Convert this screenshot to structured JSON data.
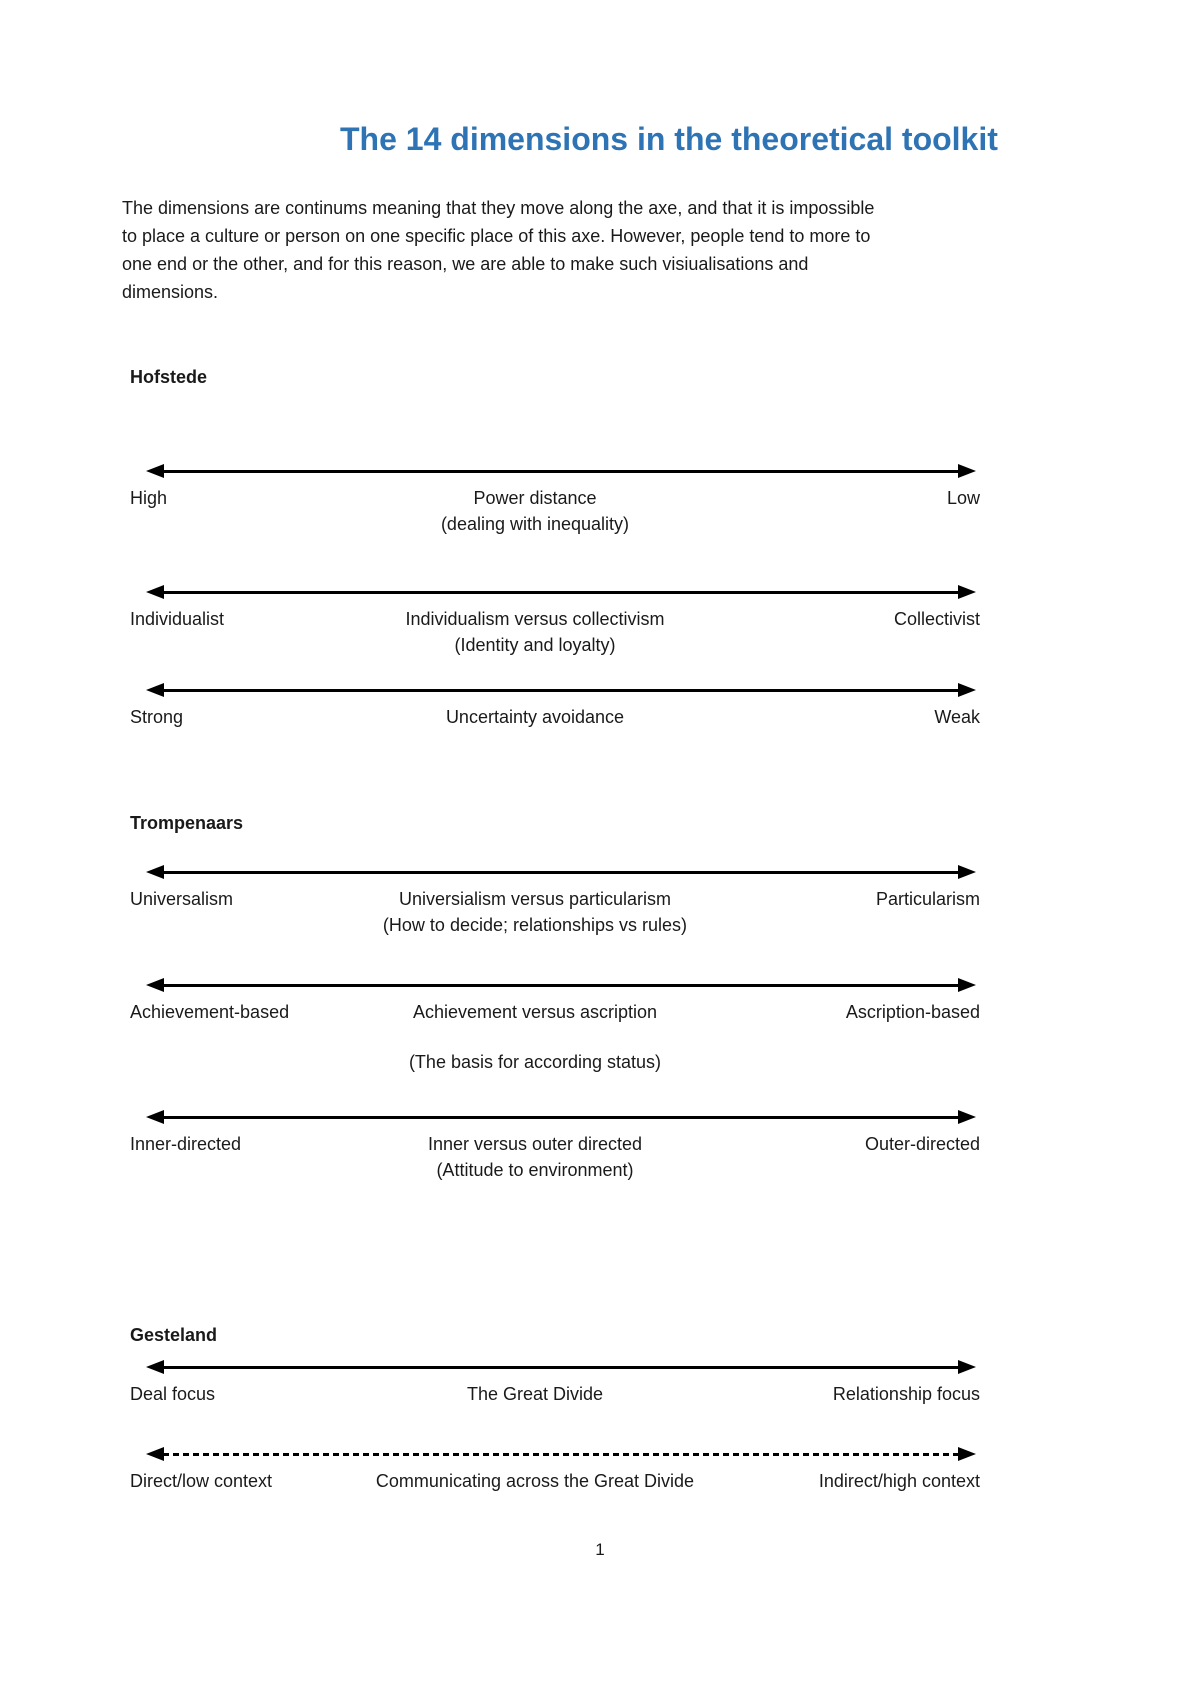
{
  "document": {
    "title": "The 14 dimensions in the theoretical toolkit",
    "intro_lines": [
      "The dimensions are continums meaning that they move along the axe, and that it is impossible",
      "to place a culture or person on one specific place of this axe. However, people tend to more to",
      "one end or the other, and for this reason, we are able to make such visiualisations and",
      "dimensions."
    ],
    "page_number": "1"
  },
  "colors": {
    "title_blue": "#2E74B5",
    "text": "#1A1A1A",
    "arrow_line": "#000000"
  },
  "sections": [
    {
      "heading": "Hofstede",
      "continuums": [
        {
          "left": "High",
          "center": "Power distance",
          "sub": "(dealing with inequality)",
          "right": "Low",
          "line_style": "solid"
        },
        {
          "left": "Individualist",
          "center": "Individualism versus collectivism",
          "sub": "(Identity and loyalty)",
          "right": "Collectivist",
          "line_style": "solid"
        },
        {
          "left": "Strong",
          "center": "Uncertainty avoidance",
          "sub": "",
          "right": "Weak",
          "line_style": "solid"
        }
      ]
    },
    {
      "heading": "Trompenaars",
      "continuums": [
        {
          "left": "Universalism",
          "center": "Universialism versus particularism",
          "sub": "(How to decide; relationships vs rules)",
          "right": "Particularism",
          "line_style": "solid"
        },
        {
          "left": "Achievement-based",
          "center": "Achievement versus ascription",
          "sub": "(The basis for according status)",
          "right": "Ascription-based",
          "line_style": "solid"
        },
        {
          "left": "Inner-directed",
          "center": "Inner versus outer directed",
          "sub": "(Attitude to environment)",
          "right": "Outer-directed",
          "line_style": "solid"
        }
      ]
    },
    {
      "heading": "Gesteland",
      "continuums": [
        {
          "left": "Deal focus",
          "center": "The Great Divide",
          "sub": "",
          "right": "Relationship focus",
          "line_style": "solid"
        },
        {
          "left": "Direct/low context",
          "center": "Communicating across the Great Divide",
          "sub": "",
          "right": "Indirect/high context",
          "line_style": "dashed"
        }
      ]
    }
  ]
}
